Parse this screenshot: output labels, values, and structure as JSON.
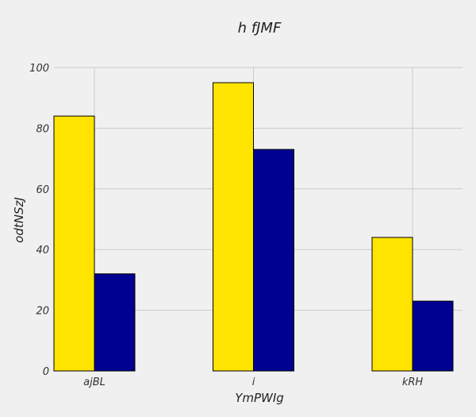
{
  "chart_data": {
    "type": "bar",
    "title": "h fJMF",
    "xlabel": "YmPWIg",
    "ylabel": "odtNSzJ",
    "categories": [
      "ajBL",
      "i",
      "kRH"
    ],
    "series": [
      {
        "values": [
          84,
          95,
          44
        ],
        "color": "#ffe400"
      },
      {
        "values": [
          32,
          73,
          23
        ],
        "color": "#000091"
      }
    ],
    "ylim": [
      0,
      100
    ],
    "yticks": [
      0,
      20,
      40,
      60,
      80,
      100
    ],
    "grid": true,
    "legend": "none"
  }
}
